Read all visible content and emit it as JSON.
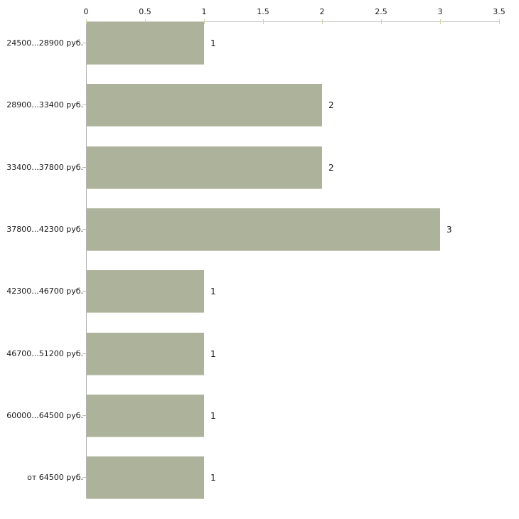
{
  "chart_data": {
    "type": "bar",
    "orientation": "horizontal",
    "title": "",
    "xlabel": "",
    "ylabel": "",
    "categories": [
      "24500...28900 руб.",
      "28900...33400 руб.",
      "33400...37800 руб.",
      "37800...42300 руб.",
      "42300...46700 руб.",
      "46700...51200 руб.",
      "60000...64500 руб.",
      "от 64500 руб."
    ],
    "values": [
      1,
      2,
      2,
      3,
      1,
      1,
      1,
      1
    ],
    "value_labels": [
      "1",
      "2",
      "2",
      "3",
      "1",
      "1",
      "1",
      "1"
    ],
    "x_tick_labels": [
      "0",
      "0.5",
      "1",
      "1.5",
      "2",
      "2.5",
      "3",
      "3.5"
    ],
    "xlim": [
      0,
      3.5
    ],
    "grid": false,
    "legend": false,
    "colors": {
      "bar_fill": "#adb39b",
      "x_axis_line": "#c9c9c5",
      "y_axis_line": "#b5b5b5",
      "x_tick": "#d4d4aa",
      "category_tick": "#c0c0a8",
      "text": "#1a1a1a",
      "background": "#ffffff"
    }
  }
}
